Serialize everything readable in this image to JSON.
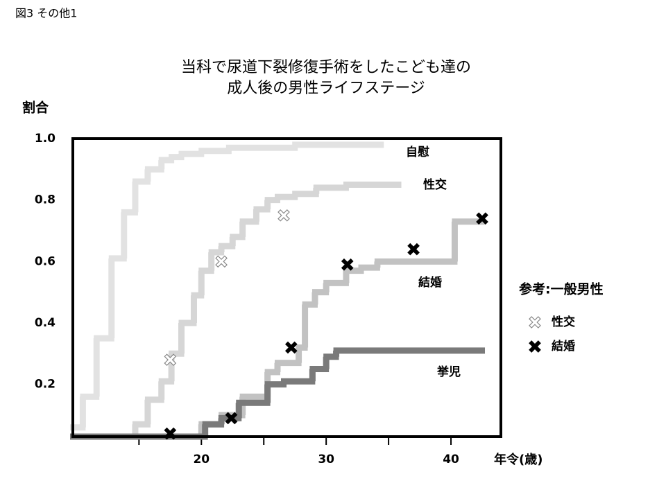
{
  "header": "図3 その他1",
  "chart_data": {
    "type": "step",
    "title": [
      "当科で尿道下裂修復手術をしたこども達の",
      "成人後の男性ライフステージ"
    ],
    "y_label": "割合",
    "x_label": "年令(歳)",
    "xlim": [
      9.7,
      44
    ],
    "xticks": [
      20,
      30,
      40
    ],
    "xminorticks": [
      15,
      25,
      35
    ],
    "ylim": [
      0.03,
      1.0
    ],
    "yticks": [
      0.2,
      0.4,
      0.6,
      0.8,
      {
        "value": 1.0,
        "label": "1.0"
      }
    ],
    "series": [
      {
        "name": "自慰",
        "color": "#e2e2e2",
        "x": [
          9.7,
          10.5,
          11.6,
          12.8,
          13.8,
          14.7,
          15.7,
          16.8,
          17.6,
          18.4,
          20,
          22.2,
          27.5,
          34.4
        ],
        "values": [
          0.06,
          0.16,
          0.35,
          0.61,
          0.76,
          0.86,
          0.9,
          0.93,
          0.94,
          0.95,
          0.96,
          0.97,
          0.98,
          0.98
        ]
      },
      {
        "name": "性交",
        "color": "#d6d6d6",
        "x": [
          9.7,
          14.7,
          15.7,
          16.8,
          17.6,
          18.4,
          19.4,
          20,
          20.8,
          21.6,
          22.5,
          23.3,
          24.4,
          25.3,
          26.1,
          27.5,
          29.2,
          31.6,
          35.8
        ],
        "values": [
          0.03,
          0.07,
          0.15,
          0.21,
          0.3,
          0.4,
          0.49,
          0.57,
          0.63,
          0.65,
          0.68,
          0.73,
          0.77,
          0.8,
          0.81,
          0.82,
          0.84,
          0.85,
          0.85
        ]
      },
      {
        "name": "結婚",
        "color": "#c2c2c2",
        "x": [
          9.7,
          20,
          21.6,
          23.3,
          25.3,
          26.1,
          27.8,
          28.3,
          29.1,
          30,
          31.6,
          32.8,
          34.1,
          40.3,
          42.5
        ],
        "values": [
          0.03,
          0.07,
          0.1,
          0.16,
          0.24,
          0.27,
          0.32,
          0.46,
          0.5,
          0.53,
          0.57,
          0.58,
          0.6,
          0.73,
          0.73
        ]
      },
      {
        "name": "挙児",
        "color": "#7a7a7a",
        "x": [
          9.7,
          20.3,
          21.6,
          23,
          25.3,
          26.6,
          28.9,
          30,
          30.8,
          42.5
        ],
        "values": [
          0.03,
          0.07,
          0.09,
          0.14,
          0.2,
          0.21,
          0.25,
          0.29,
          0.31,
          0.31
        ]
      }
    ],
    "reference": {
      "title": "参考:一般男性",
      "series": [
        {
          "name": "性交",
          "color": "#ffffff",
          "edge": "#888888",
          "x": [
            17.5,
            21.6,
            26.6
          ],
          "values": [
            0.28,
            0.6,
            0.75
          ]
        },
        {
          "name": "結婚",
          "color": "#000000",
          "edge": "#000000",
          "x": [
            17.5,
            22.4,
            27.2,
            31.7,
            37,
            42.5
          ],
          "values": [
            0.04,
            0.09,
            0.32,
            0.59,
            0.64,
            0.74
          ]
        }
      ]
    }
  }
}
